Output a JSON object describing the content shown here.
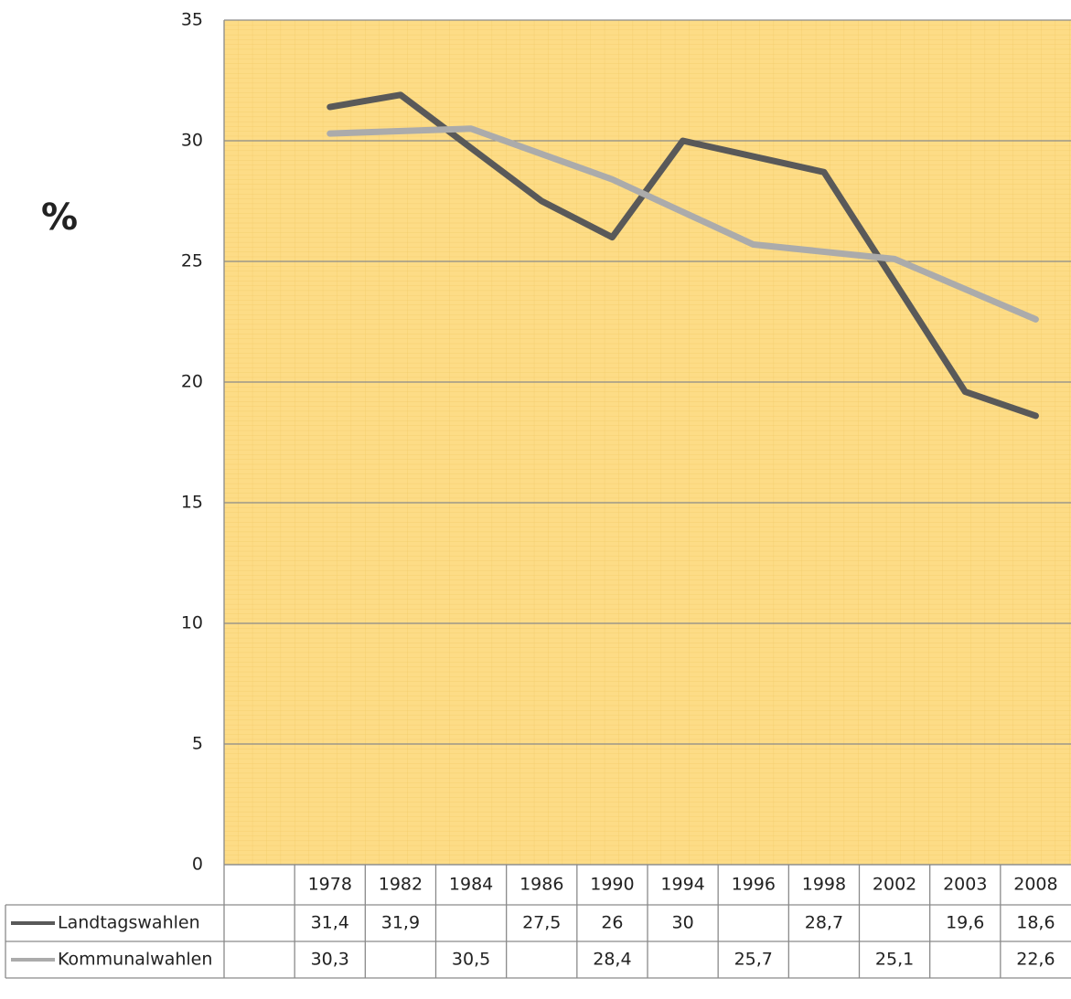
{
  "chart_data": {
    "type": "line",
    "y_label": "%",
    "categories": [
      null,
      "1978",
      "1982",
      "1984",
      "1986",
      "1990",
      "1994",
      "1996",
      "1998",
      "2002",
      "2003",
      "2008"
    ],
    "series": [
      {
        "name": "Landtagswahlen",
        "color": "#595959",
        "values": [
          null,
          31.4,
          31.9,
          null,
          27.5,
          26,
          30,
          null,
          28.7,
          null,
          19.6,
          18.6
        ],
        "value_labels": [
          null,
          "31,4",
          "31,9",
          null,
          "27,5",
          "26",
          "30",
          null,
          "28,7",
          null,
          "19,6",
          "18,6"
        ]
      },
      {
        "name": "Kommunalwahlen",
        "color": "#ababab",
        "values": [
          null,
          30.3,
          null,
          30.5,
          null,
          28.4,
          null,
          25.7,
          null,
          25.1,
          null,
          22.6
        ],
        "value_labels": [
          null,
          "30,3",
          null,
          "30,5",
          null,
          "28,4",
          null,
          "25,7",
          null,
          "25,1",
          null,
          "22,6"
        ]
      }
    ],
    "ylim": [
      0,
      35
    ],
    "yticks": [
      0,
      5,
      10,
      15,
      20,
      25,
      30,
      35
    ],
    "grid": true,
    "span_gaps": true,
    "data_table": true
  }
}
